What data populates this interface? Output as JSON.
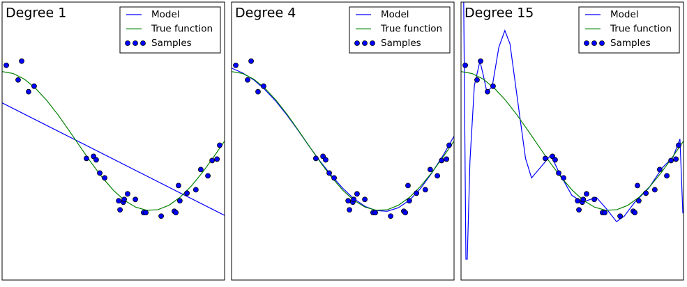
{
  "chart_data": [
    {
      "type": "line",
      "title": "Degree 1",
      "xlim": [
        0,
        1
      ],
      "ylim": [
        -2,
        2
      ],
      "legend": "upper right",
      "series": [
        {
          "name": "Model",
          "color": "#0000ff",
          "x": [
            0,
            1
          ],
          "values": [
            0.55,
            -1.07
          ]
        },
        {
          "name": "True function",
          "color": "#008000",
          "x": [
            0,
            0.05,
            0.1,
            0.15,
            0.2,
            0.25,
            0.3,
            0.35,
            0.4,
            0.45,
            0.5,
            0.55,
            0.6,
            0.65,
            0.7,
            0.75,
            0.8,
            0.85,
            0.9,
            0.95,
            1
          ],
          "values": [
            1,
            0.972,
            0.891,
            0.76,
            0.588,
            0.383,
            0.156,
            -0.078,
            -0.309,
            -0.522,
            -0.707,
            -0.853,
            -0.951,
            -0.996,
            -0.988,
            -0.924,
            -0.809,
            -0.649,
            -0.454,
            -0.233,
            0
          ]
        },
        {
          "name": "Samples",
          "kind": "scatter",
          "color": "#0000ff",
          "x": [
            0.019,
            0.088,
            0.072,
            0.119,
            0.144,
            0.379,
            0.411,
            0.423,
            0.439,
            0.461,
            0.524,
            0.53,
            0.545,
            0.549,
            0.564,
            0.599,
            0.636,
            0.646,
            0.715,
            0.774,
            0.781,
            0.799,
            0.793,
            0.831,
            0.871,
            0.893,
            0.925,
            0.944,
            0.966,
            0.978
          ],
          "values": [
            1.09,
            1.15,
            0.88,
            0.71,
            0.79,
            -0.25,
            -0.22,
            -0.27,
            -0.46,
            -0.53,
            -0.86,
            -0.99,
            -0.88,
            -0.84,
            -0.76,
            -0.84,
            -1.03,
            -1.03,
            -1.08,
            -1.01,
            -1.03,
            -0.86,
            -0.64,
            -0.75,
            -0.7,
            -0.41,
            -0.5,
            -0.28,
            -0.26,
            -0.06
          ]
        }
      ]
    },
    {
      "type": "line",
      "title": "Degree 4",
      "xlim": [
        0,
        1
      ],
      "ylim": [
        -2,
        2
      ],
      "legend": "upper right",
      "series": [
        {
          "name": "Model",
          "color": "#0000ff",
          "x": [
            0,
            0.05,
            0.1,
            0.15,
            0.2,
            0.25,
            0.3,
            0.35,
            0.4,
            0.45,
            0.5,
            0.55,
            0.6,
            0.65,
            0.7,
            0.75,
            0.8,
            0.85,
            0.9,
            0.95,
            1
          ],
          "values": [
            1.05,
            0.98,
            0.88,
            0.74,
            0.57,
            0.37,
            0.15,
            -0.08,
            -0.3,
            -0.5,
            -0.68,
            -0.83,
            -0.94,
            -1.0,
            -1.01,
            -0.96,
            -0.85,
            -0.68,
            -0.46,
            -0.21,
            0.07
          ]
        },
        {
          "name": "True function",
          "color": "#008000",
          "x": [
            0,
            0.05,
            0.1,
            0.15,
            0.2,
            0.25,
            0.3,
            0.35,
            0.4,
            0.45,
            0.5,
            0.55,
            0.6,
            0.65,
            0.7,
            0.75,
            0.8,
            0.85,
            0.9,
            0.95,
            1
          ],
          "values": [
            1,
            0.972,
            0.891,
            0.76,
            0.588,
            0.383,
            0.156,
            -0.078,
            -0.309,
            -0.522,
            -0.707,
            -0.853,
            -0.951,
            -0.996,
            -0.988,
            -0.924,
            -0.809,
            -0.649,
            -0.454,
            -0.233,
            0
          ]
        },
        {
          "name": "Samples",
          "kind": "scatter",
          "color": "#0000ff",
          "x": [
            0.019,
            0.088,
            0.072,
            0.119,
            0.144,
            0.379,
            0.411,
            0.423,
            0.439,
            0.461,
            0.524,
            0.53,
            0.545,
            0.549,
            0.564,
            0.599,
            0.636,
            0.646,
            0.715,
            0.774,
            0.781,
            0.799,
            0.793,
            0.831,
            0.871,
            0.893,
            0.925,
            0.944,
            0.966,
            0.978
          ],
          "values": [
            1.09,
            1.15,
            0.88,
            0.71,
            0.79,
            -0.25,
            -0.22,
            -0.27,
            -0.46,
            -0.53,
            -0.86,
            -0.99,
            -0.88,
            -0.84,
            -0.76,
            -0.84,
            -1.03,
            -1.03,
            -1.08,
            -1.01,
            -1.03,
            -0.86,
            -0.64,
            -0.75,
            -0.7,
            -0.41,
            -0.5,
            -0.28,
            -0.26,
            -0.06
          ]
        }
      ]
    },
    {
      "type": "line",
      "title": "Degree 15",
      "xlim": [
        0,
        1
      ],
      "ylim": [
        -2,
        2
      ],
      "legend": "upper right",
      "series": [
        {
          "name": "Model",
          "color": "#0000ff",
          "x": [
            0.012,
            0.022,
            0.028,
            0.04,
            0.06,
            0.085,
            0.1,
            0.116,
            0.14,
            0.17,
            0.197,
            0.22,
            0.263,
            0.29,
            0.317,
            0.357,
            0.404,
            0.44,
            0.498,
            0.545,
            0.608,
            0.655,
            0.699,
            0.734,
            0.781,
            0.843,
            0.906,
            0.953,
            0.984,
            0.997
          ],
          "values": [
            2.0,
            -1.7,
            -1.7,
            -0.3,
            0.8,
            1.15,
            0.95,
            0.71,
            0.78,
            1.35,
            1.59,
            1.4,
            0.38,
            -0.25,
            -0.53,
            -0.38,
            -0.2,
            -0.45,
            -0.78,
            -0.88,
            -0.81,
            -0.98,
            -1.16,
            -1.08,
            -0.88,
            -0.68,
            -0.38,
            -0.23,
            0.03,
            -1.04
          ]
        },
        {
          "name": "True function",
          "color": "#008000",
          "x": [
            0,
            0.05,
            0.1,
            0.15,
            0.2,
            0.25,
            0.3,
            0.35,
            0.4,
            0.45,
            0.5,
            0.55,
            0.6,
            0.65,
            0.7,
            0.75,
            0.8,
            0.85,
            0.9,
            0.95,
            1
          ],
          "values": [
            1,
            0.972,
            0.891,
            0.76,
            0.588,
            0.383,
            0.156,
            -0.078,
            -0.309,
            -0.522,
            -0.707,
            -0.853,
            -0.951,
            -0.996,
            -0.988,
            -0.924,
            -0.809,
            -0.649,
            -0.454,
            -0.233,
            0
          ]
        },
        {
          "name": "Samples",
          "kind": "scatter",
          "color": "#0000ff",
          "x": [
            0.019,
            0.088,
            0.072,
            0.119,
            0.144,
            0.379,
            0.411,
            0.423,
            0.439,
            0.461,
            0.524,
            0.53,
            0.545,
            0.549,
            0.564,
            0.599,
            0.636,
            0.646,
            0.715,
            0.774,
            0.781,
            0.799,
            0.793,
            0.831,
            0.871,
            0.893,
            0.925,
            0.944,
            0.966,
            0.978
          ],
          "values": [
            1.09,
            1.15,
            0.88,
            0.71,
            0.79,
            -0.25,
            -0.22,
            -0.27,
            -0.46,
            -0.53,
            -0.86,
            -0.99,
            -0.88,
            -0.84,
            -0.76,
            -0.84,
            -1.03,
            -1.03,
            -1.08,
            -1.01,
            -1.03,
            -0.86,
            -0.64,
            -0.75,
            -0.7,
            -0.41,
            -0.5,
            -0.28,
            -0.26,
            -0.06
          ]
        }
      ]
    }
  ]
}
